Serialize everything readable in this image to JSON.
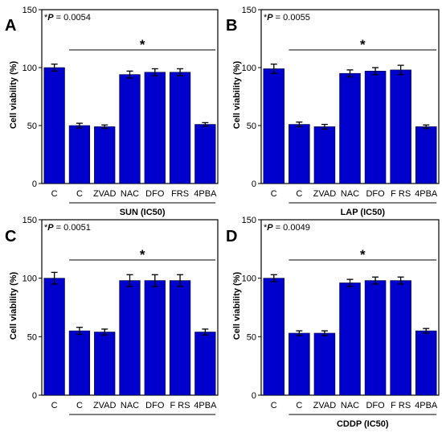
{
  "chart_data": [
    {
      "panel": "A",
      "type": "bar",
      "annotation_prefix": "*",
      "annotation_var": "P",
      "annotation_value": " = 0.0054",
      "significance_marker": "*",
      "categories": [
        "C",
        "C",
        "ZVAD",
        "NAC",
        "DFO",
        "FRS",
        "4PBA"
      ],
      "values": [
        100,
        50,
        49,
        94,
        96,
        96,
        51
      ],
      "errors": [
        3,
        2,
        1.5,
        3,
        3,
        3,
        1.5
      ],
      "group_label": "SUN (IC50)",
      "ylabel": "Cell viability (%)",
      "ylim": [
        0,
        150
      ],
      "yticks": [
        0,
        50,
        100,
        150
      ],
      "bar_color": "#0000cc"
    },
    {
      "panel": "B",
      "type": "bar",
      "annotation_prefix": "*",
      "annotation_var": "P",
      "annotation_value": " =  0.0055",
      "significance_marker": "*",
      "categories": [
        "C",
        "C",
        "ZVAD",
        "NAC",
        "DFO",
        "F RS",
        "4PBA"
      ],
      "values": [
        99,
        51,
        49,
        95,
        97,
        98,
        49
      ],
      "errors": [
        4,
        2,
        2,
        3,
        3,
        4,
        1.5
      ],
      "group_label": "LAP (IC50)",
      "ylabel": "Cell viability (%)",
      "ylim": [
        0,
        150
      ],
      "yticks": [
        0,
        50,
        100,
        150
      ],
      "bar_color": "#0000cc"
    },
    {
      "panel": "C",
      "type": "bar",
      "annotation_prefix": "*",
      "annotation_var": "P",
      "annotation_value": " = 0.0051",
      "significance_marker": "*",
      "categories": [
        "C",
        "C",
        "ZVAD",
        "NAC",
        "DFO",
        "F RS",
        "4PBA"
      ],
      "values": [
        100,
        55,
        54,
        98,
        98,
        98,
        54
      ],
      "errors": [
        5,
        3,
        2.5,
        5,
        5,
        5,
        2.5
      ],
      "group_label": "",
      "ylabel": "Cell viability (%)",
      "ylim": [
        0,
        150
      ],
      "yticks": [
        0,
        50,
        100,
        150
      ],
      "bar_color": "#0000cc"
    },
    {
      "panel": "D",
      "type": "bar",
      "annotation_prefix": "*",
      "annotation_var": "P",
      "annotation_value": " = 0.0049",
      "significance_marker": "*",
      "categories": [
        "C",
        "C",
        "ZVAD",
        "NAC",
        "DFO",
        "F RS",
        "4PBA"
      ],
      "values": [
        100,
        53,
        53,
        96,
        98,
        98,
        55
      ],
      "errors": [
        3,
        2,
        2,
        3,
        3,
        3,
        2
      ],
      "group_label": "CDDP (IC50)",
      "ylabel": "Cell viability (%)",
      "ylim": [
        0,
        150
      ],
      "yticks": [
        0,
        50,
        100,
        150
      ],
      "bar_color": "#0000cc"
    }
  ]
}
